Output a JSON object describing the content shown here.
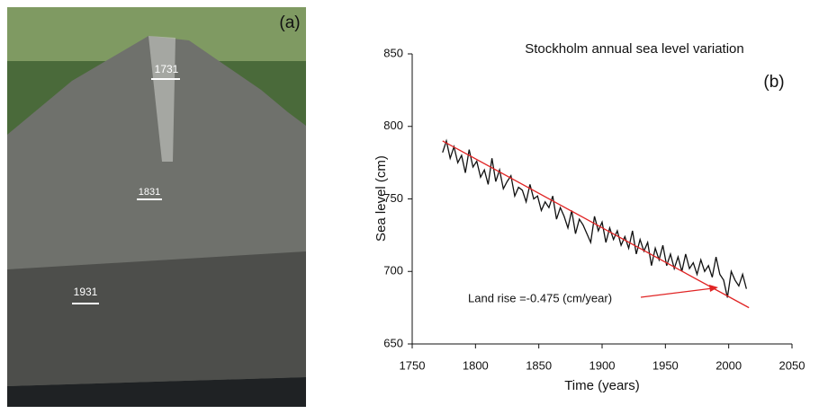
{
  "photo": {
    "panel_label": "(a)",
    "marks": [
      "1731",
      "1831",
      "1931"
    ]
  },
  "chart_data": {
    "type": "line",
    "title": "Stockholm annual sea level variation",
    "panel_label": "(b)",
    "x_label": "Time (years)",
    "y_label": "Sea level (cm)",
    "annotation": "Land rise =-0.475 (cm/year)",
    "xlim": [
      1750,
      2050
    ],
    "xticks": [
      1750,
      1800,
      1850,
      1900,
      1950,
      2000,
      2050
    ],
    "ylim": [
      650,
      850
    ],
    "yticks": [
      650,
      700,
      750,
      800,
      850
    ],
    "series": [
      {
        "color": "#111111",
        "x": [
          1774,
          1777,
          1780,
          1783,
          1786,
          1789,
          1792,
          1795,
          1798,
          1801,
          1804,
          1807,
          1810,
          1813,
          1816,
          1819,
          1822,
          1825,
          1828,
          1831,
          1834,
          1837,
          1840,
          1843,
          1846,
          1849,
          1852,
          1855,
          1858,
          1861,
          1864,
          1867,
          1870,
          1873,
          1876,
          1879,
          1882,
          1885,
          1888,
          1891,
          1894,
          1897,
          1900,
          1903,
          1906,
          1909,
          1912,
          1915,
          1918,
          1921,
          1924,
          1927,
          1930,
          1933,
          1936,
          1939,
          1942,
          1945,
          1948,
          1951,
          1954,
          1957,
          1960,
          1963,
          1966,
          1969,
          1972,
          1975,
          1978,
          1981,
          1984,
          1987,
          1990,
          1993,
          1996,
          1999,
          2002,
          2005,
          2008,
          2011,
          2014
        ],
        "values": [
          782,
          790,
          778,
          786,
          775,
          780,
          768,
          784,
          772,
          776,
          765,
          770,
          760,
          778,
          762,
          770,
          757,
          762,
          766,
          752,
          758,
          756,
          748,
          760,
          750,
          752,
          742,
          748,
          744,
          752,
          736,
          744,
          738,
          730,
          742,
          726,
          736,
          732,
          726,
          720,
          738,
          728,
          734,
          720,
          730,
          722,
          728,
          718,
          724,
          716,
          728,
          712,
          722,
          714,
          720,
          704,
          716,
          708,
          718,
          704,
          712,
          702,
          710,
          700,
          712,
          702,
          706,
          698,
          708,
          700,
          704,
          696,
          710,
          698,
          694,
          682,
          700,
          694,
          690,
          698,
          688
        ]
      },
      {
        "color": "#e02424",
        "x": [
          1774,
          2016
        ],
        "values": [
          790,
          675
        ]
      }
    ]
  }
}
